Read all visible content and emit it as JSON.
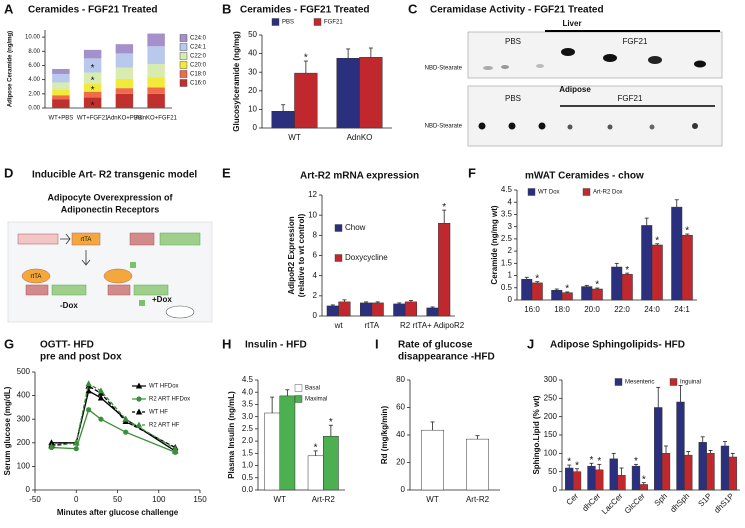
{
  "chart_data": [
    {
      "panel": "A",
      "type": "bar",
      "stacked": true,
      "title": "Ceramides - FGF21 Treated",
      "ylabel": "Adipose Ceramide (ng/mg)",
      "categories": [
        "WT+PBS",
        "WT+FGF21",
        "AdnKO+PBS",
        "AdnKO+FGF21"
      ],
      "series": [
        {
          "name": "C16:0",
          "color": "#c0302e",
          "values": [
            1.2,
            1.5,
            2.0,
            2.0
          ]
        },
        {
          "name": "C18:0",
          "color": "#ef6b4a",
          "values": [
            0.6,
            0.8,
            0.8,
            0.9
          ]
        },
        {
          "name": "C20:0",
          "color": "#f2ea3a",
          "values": [
            0.8,
            1.2,
            1.3,
            1.4
          ]
        },
        {
          "name": "C22:0",
          "color": "#d9ecb0",
          "values": [
            1.0,
            1.5,
            1.6,
            1.9
          ]
        },
        {
          "name": "C24:1",
          "color": "#b9c9ee",
          "values": [
            1.2,
            2.0,
            2.0,
            2.5
          ]
        },
        {
          "name": "C24:0",
          "color": "#a591c9",
          "values": [
            0.7,
            1.2,
            1.3,
            1.8
          ]
        }
      ],
      "ylim": [
        0,
        11
      ],
      "yticks": [
        {
          "value": 0,
          "label": "0.00"
        },
        {
          "value": 2,
          "label": "2.00"
        },
        {
          "value": 4,
          "label": "4.00"
        },
        {
          "value": 6,
          "label": "6.00"
        },
        {
          "value": 8,
          "label": "8.00"
        },
        {
          "value": 10,
          "label": "10.00"
        }
      ],
      "annotations": [
        "*",
        "*",
        "*",
        "*"
      ]
    },
    {
      "panel": "B",
      "type": "bar",
      "title": "Ceramides - FGF21 Treated",
      "ylabel": "Glucosylceramide (ng/mg)",
      "categories": [
        "WT",
        "AdnKO"
      ],
      "series": [
        {
          "name": "PBS",
          "color": "#2a2f7e",
          "values": [
            9,
            37.5
          ],
          "errors": [
            3.5,
            5
          ]
        },
        {
          "name": "FGF21",
          "color": "#c0282d",
          "values": [
            29.5,
            38
          ],
          "errors": [
            6.5,
            5
          ]
        }
      ],
      "ylim": [
        0,
        50
      ],
      "yticks": [
        0,
        10,
        20,
        30,
        40,
        50
      ],
      "annotations": [
        "*"
      ]
    },
    {
      "panel": "E",
      "type": "bar",
      "title": "Art-R2 mRNA expression",
      "ylabel": [
        "AdipoR2 Expression",
        "(relative to wt control)"
      ],
      "categories": [
        "wt",
        "rtTA",
        "R2",
        "rtTA+ AdipoR2"
      ],
      "series": [
        {
          "name": "Chow",
          "color": "#2a2f7e",
          "values": [
            1.0,
            1.3,
            1.2,
            0.8
          ],
          "errors": [
            0.1,
            0.1,
            0.1,
            0.1
          ]
        },
        {
          "name": "Doxycycline",
          "color": "#c0282d",
          "values": [
            1.4,
            1.3,
            1.4,
            9.2
          ],
          "errors": [
            0.2,
            0.1,
            0.15,
            1.3
          ]
        }
      ],
      "ylim": [
        0,
        12
      ],
      "yticks": [
        0,
        2,
        4,
        6,
        8,
        10,
        12
      ],
      "annotations": [
        "*"
      ]
    },
    {
      "panel": "F",
      "type": "bar",
      "title": "mWAT Ceramides - chow",
      "ylabel": "Ceramide (ng/mg wt)",
      "categories": [
        "16:0",
        "18:0",
        "20:0",
        "22:0",
        "24:0",
        "24:1"
      ],
      "series": [
        {
          "name": "WT Dox",
          "color": "#2a2f7e",
          "values": [
            0.85,
            0.4,
            0.55,
            1.35,
            3.05,
            3.8
          ],
          "errors": [
            0.08,
            0.05,
            0.05,
            0.15,
            0.3,
            0.3
          ]
        },
        {
          "name": "Art-R2 Dox",
          "color": "#c0282d",
          "values": [
            0.7,
            0.3,
            0.45,
            1.05,
            2.25,
            2.65
          ],
          "errors": [
            0.05,
            0.03,
            0.04,
            0.05,
            0.05,
            0.05
          ]
        }
      ],
      "ylim": [
        0,
        4.5
      ],
      "yticks": [
        0,
        0.5,
        1,
        1.5,
        2,
        2.5,
        3,
        3.5,
        4,
        4.5
      ],
      "annotations": [
        "*",
        "*",
        "*",
        "*",
        "*",
        "*"
      ]
    },
    {
      "panel": "G",
      "type": "line",
      "title": [
        "OGTT- HFD",
        "pre and post Dox"
      ],
      "ylabel": "Serum glucose (mg/dL)",
      "xlabel": "Minutes after glucose challenge",
      "x": [
        -30,
        0,
        15,
        30,
        60,
        120
      ],
      "series": [
        {
          "name": "WT HFDox",
          "color": "#000000",
          "marker": "triangle",
          "dash": false,
          "values": [
            200,
            200,
            420,
            390,
            300,
            165
          ]
        },
        {
          "name": "R2 ART HFDox",
          "color": "#3a8f3a",
          "marker": "circle",
          "dash": false,
          "values": [
            180,
            175,
            340,
            300,
            245,
            160
          ]
        },
        {
          "name": "WT HF",
          "color": "#000000",
          "marker": "triangle",
          "dash": true,
          "values": [
            190,
            200,
            440,
            410,
            290,
            180
          ]
        },
        {
          "name": "R2 ART HF",
          "color": "#3a8f3a",
          "marker": "triangle",
          "dash": true,
          "values": [
            185,
            200,
            450,
            420,
            300,
            175
          ]
        }
      ],
      "xlim": [
        -50,
        150
      ],
      "xticks": [
        -50,
        0,
        50,
        100,
        150
      ],
      "ylim": [
        0,
        500
      ],
      "yticks": [
        0,
        100,
        200,
        300,
        400,
        500
      ]
    },
    {
      "panel": "H",
      "type": "bar",
      "title": "Insulin - HFD",
      "ylabel": "Plasma Insulin (ng/mL)",
      "categories": [
        "WT",
        "Art-R2"
      ],
      "series": [
        {
          "name": "Basal",
          "color": "#ffffff",
          "values": [
            3.15,
            1.4
          ],
          "errors": [
            0.65,
            0.2
          ]
        },
        {
          "name": "Maximal",
          "color": "#4caf50",
          "values": [
            3.85,
            2.2
          ],
          "errors": [
            0.25,
            0.45
          ]
        }
      ],
      "ylim": [
        0,
        4.5
      ],
      "yticks": [
        {
          "value": 0,
          "label": "0.0"
        },
        0.5,
        {
          "value": 1,
          "label": "1.0"
        },
        1.5,
        {
          "value": 2,
          "label": "2.0"
        },
        2.5,
        {
          "value": 3,
          "label": "3.0"
        },
        3.5,
        {
          "value": 4,
          "label": "4.0"
        },
        4.5
      ],
      "annotations": [
        "*",
        "*"
      ]
    },
    {
      "panel": "I",
      "type": "bar",
      "title": [
        "Rate of glucose",
        "disappearance -HFD"
      ],
      "ylabel": "Rd (mg/kg/min)",
      "categories": [
        "WT",
        "Art-R2"
      ],
      "values": [
        43.5,
        37
      ],
      "errors": [
        6,
        2.5
      ],
      "color": "#ffffff",
      "ylim": [
        0,
        80
      ],
      "yticks": [
        0,
        20,
        40,
        60,
        80
      ]
    },
    {
      "panel": "J",
      "type": "bar",
      "title": "Adipose Sphingolipids- HFD",
      "ylabel": "Sphingo.Lipid (% wt)",
      "categories": [
        "Cer",
        "dhCer",
        "LacCer",
        "GlcCer",
        "Sph",
        "dhSph",
        "S1P",
        "dhS1P"
      ],
      "series": [
        {
          "name": "Mesenteric",
          "color": "#2a2f7e",
          "values": [
            60,
            65,
            85,
            65,
            225,
            240,
            130,
            120
          ],
          "errors": [
            8,
            8,
            15,
            5,
            55,
            45,
            15,
            12
          ]
        },
        {
          "name": "Inguinal",
          "color": "#c0282d",
          "values": [
            50,
            55,
            40,
            15,
            100,
            95,
            100,
            90
          ],
          "errors": [
            8,
            15,
            20,
            5,
            20,
            10,
            8,
            10
          ]
        }
      ],
      "ylim": [
        0,
        300
      ],
      "yticks": [
        0,
        50,
        100,
        150,
        200,
        250,
        300
      ],
      "annotations": [
        "*",
        "*",
        "*",
        "*",
        "*",
        "*"
      ]
    }
  ],
  "blot": {
    "panel": "C",
    "title": "Ceramidase Activity - FGF21 Treated",
    "top": {
      "labels": [
        "PBS",
        "Liver",
        "FGF21"
      ],
      "lane_label": "NBD-Stearate"
    },
    "bottom": {
      "labels": [
        "PBS",
        "Adipose",
        "FGF21"
      ],
      "lane_label": "NBD-Stearate"
    }
  },
  "diagram": {
    "panel": "D",
    "title": "Inducible Art- R2 transgenic model",
    "subtitle": [
      "Adipocyte Overexpression of",
      "Adiponectin Receptors"
    ],
    "labels": [
      "rtTA",
      "rtTA",
      "-Dox",
      "+Dox"
    ]
  }
}
